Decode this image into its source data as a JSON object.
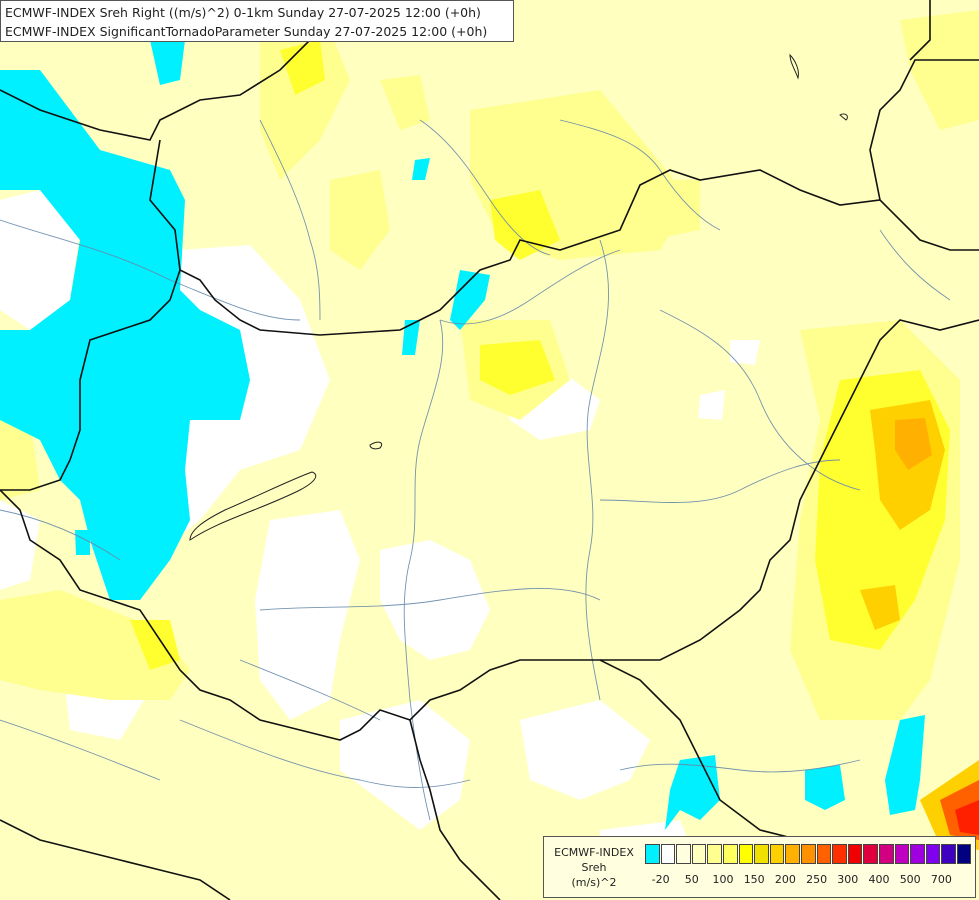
{
  "title": {
    "line1": "ECMWF-INDEX Sreh Right ((m/s)^2) 0-1km Sunday 27-07-2025 12:00 (+0h)",
    "line2": "ECMWF-INDEX SignificantTornadoParameter Sunday 27-07-2025 12:00 (+0h)"
  },
  "legend": {
    "label_line1": "ECMWF-INDEX",
    "label_line2": "Sreh",
    "label_line3": "(m/s)^2",
    "colors": [
      "#00f0ff",
      "#ffffff",
      "#ffffe0",
      "#ffffc0",
      "#ffff90",
      "#ffff60",
      "#ffff00",
      "#f0e000",
      "#ffd000",
      "#ffb000",
      "#ff9000",
      "#ff6000",
      "#ff3000",
      "#f00000",
      "#e00040",
      "#d00080",
      "#c000c0",
      "#a000e0",
      "#8000f0",
      "#4000c0",
      "#000080"
    ],
    "ticks": [
      "-20",
      "50",
      "100",
      "150",
      "200",
      "250",
      "300",
      "400",
      "500",
      "700"
    ]
  }
}
